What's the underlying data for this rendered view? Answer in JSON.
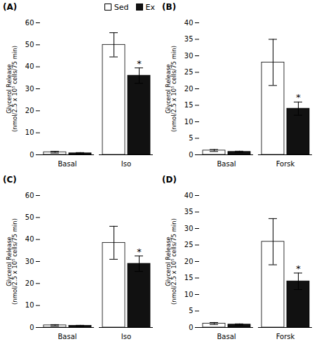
{
  "chart_data": [
    {
      "type": "bar",
      "title": "(A)",
      "ylabel": "Glycerol Release\n(nmol/2.5 x 10⁵ cells/75 min)",
      "categories": [
        "Basal",
        "Iso"
      ],
      "series": [
        {
          "name": "Sed",
          "color": "#ffffff",
          "values": [
            1.2,
            50.0
          ],
          "errors": [
            0.4,
            5.5
          ]
        },
        {
          "name": "Ex",
          "color": "#111111",
          "values": [
            0.7,
            36.0
          ],
          "errors": [
            0.3,
            3.5
          ]
        }
      ],
      "ylim": [
        0,
        60
      ],
      "yticks": [
        0,
        10,
        20,
        30,
        40,
        50,
        60
      ],
      "annotations": [
        {
          "text": "*",
          "category": "Iso",
          "series": "Ex"
        }
      ],
      "legend": "upper right"
    },
    {
      "type": "bar",
      "title": "(B)",
      "ylabel": "Glycerol Release\n(nmol/2.5 x 10⁵ cells/75 min)",
      "categories": [
        "Basal",
        "Forsk"
      ],
      "series": [
        {
          "name": "Sed",
          "color": "#ffffff",
          "values": [
            1.3,
            28.0
          ],
          "errors": [
            0.3,
            7.0
          ]
        },
        {
          "name": "Ex",
          "color": "#111111",
          "values": [
            0.9,
            14.0
          ],
          "errors": [
            0.2,
            2.0
          ]
        }
      ],
      "ylim": [
        0,
        40
      ],
      "yticks": [
        0,
        5,
        10,
        15,
        20,
        25,
        30,
        35,
        40
      ],
      "annotations": [
        {
          "text": "*",
          "category": "Forsk",
          "series": "Ex"
        }
      ]
    },
    {
      "type": "bar",
      "title": "(C)",
      "ylabel": "Glycerol Release\n(nmol/2.5 x 10⁵ cells/75 min)",
      "categories": [
        "Basal",
        "Iso"
      ],
      "series": [
        {
          "name": "Sed",
          "color": "#ffffff",
          "values": [
            1.0,
            38.5
          ],
          "errors": [
            0.3,
            7.5
          ]
        },
        {
          "name": "Ex",
          "color": "#111111",
          "values": [
            0.8,
            29.0
          ],
          "errors": [
            0.2,
            3.5
          ]
        }
      ],
      "ylim": [
        0,
        60
      ],
      "yticks": [
        0,
        10,
        20,
        30,
        40,
        50,
        60
      ],
      "annotations": [
        {
          "text": "*",
          "category": "Iso",
          "series": "Ex"
        }
      ]
    },
    {
      "type": "bar",
      "title": "(D)",
      "ylabel": "Glycerol Release\n(nmol/2.5 x 10⁵ cells/75 min)",
      "categories": [
        "Basal",
        "Forsk"
      ],
      "series": [
        {
          "name": "Sed",
          "color": "#ffffff",
          "values": [
            1.2,
            26.0
          ],
          "errors": [
            0.3,
            7.0
          ]
        },
        {
          "name": "Ex",
          "color": "#111111",
          "values": [
            0.9,
            14.0
          ],
          "errors": [
            0.2,
            2.5
          ]
        }
      ],
      "ylim": [
        0,
        40
      ],
      "yticks": [
        0,
        5,
        10,
        15,
        20,
        25,
        30,
        35,
        40
      ],
      "annotations": [
        {
          "text": "*",
          "category": "Forsk",
          "series": "Ex"
        }
      ]
    }
  ]
}
